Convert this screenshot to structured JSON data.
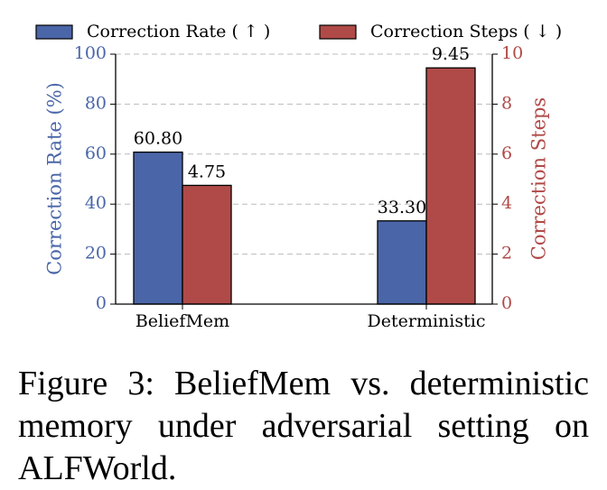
{
  "chart_data": {
    "type": "bar",
    "categories": [
      "BeliefMem",
      "Deterministic"
    ],
    "series": [
      {
        "name": "Correction Rate ( ↑ )",
        "color": "#4a66a8",
        "values": [
          60.8,
          33.3
        ],
        "value_labels": [
          "60.80",
          "33.30"
        ]
      },
      {
        "name": "Correction Steps ( ↓ )",
        "color": "#b04a48",
        "values": [
          4.75,
          9.45
        ],
        "value_labels": [
          "4.75",
          "9.45"
        ],
        "axis": "y2"
      }
    ],
    "ylabel": "Correction Rate (%)",
    "y2label": "Correction Steps",
    "ylim": [
      0,
      100
    ],
    "yticks": [
      0,
      20,
      40,
      60,
      80,
      100
    ],
    "y2lim": [
      0,
      10
    ],
    "y2ticks": [
      0,
      2,
      4,
      6,
      8,
      10
    ],
    "grid": true,
    "legend": "top"
  },
  "caption": "Figure 3: BeliefMem vs. deterministic memory under adversarial setting on ALFWorld."
}
